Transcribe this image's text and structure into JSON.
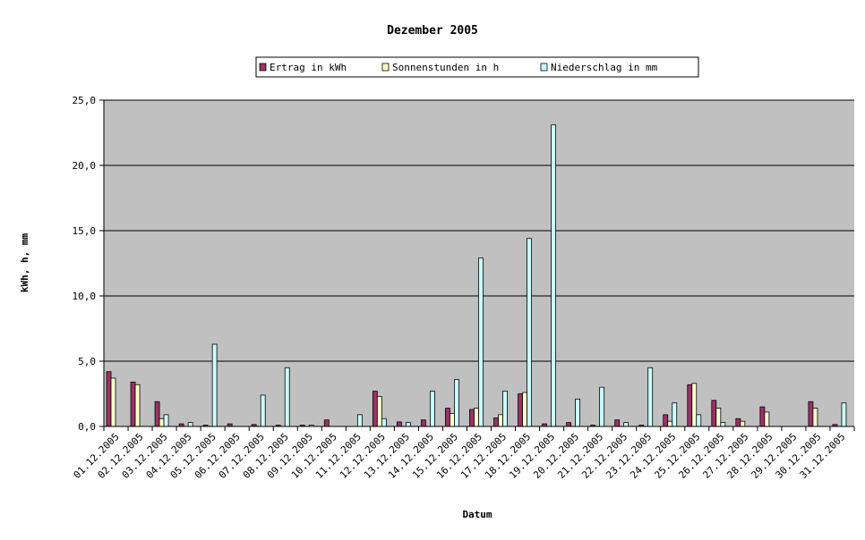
{
  "chart_data": {
    "type": "bar",
    "title": "Dezember 2005",
    "xlabel": "Datum",
    "ylabel": "kWh, h, mm",
    "ylim": [
      0,
      25
    ],
    "yticks": [
      "0,0",
      "5,0",
      "10,0",
      "15,0",
      "20,0",
      "25,0"
    ],
    "ytick_values": [
      0,
      5,
      10,
      15,
      20,
      25
    ],
    "grid": true,
    "legend_position": "top",
    "plot_background": "#c0c0c0",
    "categories": [
      "01.12.2005",
      "02.12.2005",
      "03.12.2005",
      "04.12.2005",
      "05.12.2005",
      "06.12.2005",
      "07.12.2005",
      "08.12.2005",
      "09.12.2005",
      "10.12.2005",
      "11.12.2005",
      "12.12.2005",
      "13.12.2005",
      "14.12.2005",
      "15.12.2005",
      "16.12.2005",
      "17.12.2005",
      "18.12.2005",
      "19.12.2005",
      "20.12.2005",
      "21.12.2005",
      "22.12.2005",
      "23.12.2005",
      "24.12.2005",
      "25.12.2005",
      "26.12.2005",
      "27.12.2005",
      "28.12.2005",
      "29.12.2005",
      "30.12.2005",
      "31.12.2005"
    ],
    "series": [
      {
        "name": "Ertrag in kWh",
        "color": "#993366",
        "values": [
          4.2,
          3.4,
          1.9,
          0.2,
          0.1,
          0.2,
          0.15,
          0.1,
          0.1,
          0.5,
          0.0,
          2.7,
          0.35,
          0.5,
          1.4,
          1.3,
          0.65,
          2.5,
          0.2,
          0.3,
          0.1,
          0.5,
          0.1,
          0.9,
          3.2,
          2.0,
          0.6,
          1.5,
          0.0,
          1.9,
          0.15
        ]
      },
      {
        "name": "Sonnenstunden in h",
        "color": "#ffffcc",
        "values": [
          3.7,
          3.2,
          0.6,
          0.0,
          0.0,
          0.0,
          0.0,
          0.0,
          0.0,
          0.0,
          0.0,
          2.3,
          0.0,
          0.0,
          1.0,
          1.4,
          0.9,
          2.6,
          0.0,
          0.0,
          0.0,
          0.0,
          0.0,
          0.4,
          3.3,
          1.4,
          0.4,
          1.1,
          0.0,
          1.4,
          0.0
        ]
      },
      {
        "name": "Niederschlag in mm",
        "color": "#ccffff",
        "values": [
          0.0,
          0.0,
          0.9,
          0.3,
          6.3,
          0.0,
          2.4,
          4.5,
          0.1,
          0.0,
          0.9,
          0.6,
          0.3,
          2.7,
          3.6,
          12.9,
          2.7,
          14.4,
          23.1,
          2.1,
          3.0,
          0.3,
          4.5,
          1.8,
          0.9,
          0.3,
          0.0,
          0.0,
          0.0,
          0.0,
          1.8
        ]
      }
    ]
  }
}
